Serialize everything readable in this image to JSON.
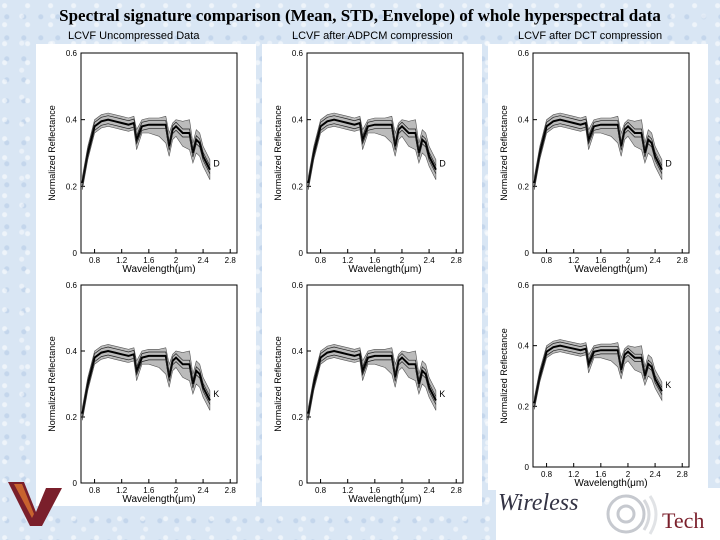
{
  "title": "Spectral signature comparison (Mean, STD, Envelope) of whole hyperspectral data",
  "columns": [
    "LCVF Uncompressed Data",
    "LCVF after ADPCM compression",
    "LCVF after DCT compression"
  ],
  "logo": {
    "wireless": "Wireless",
    "tech": "Tech"
  },
  "chart_data": {
    "type": "line",
    "xlabel": "Wavelength(μm)",
    "ylabel": "Normalized Reflectance",
    "xticks": [
      "0.8",
      "1.2",
      "1.6",
      "2",
      "2.4",
      "2.8"
    ],
    "xlim": [
      0.6,
      2.9
    ],
    "yticks": [
      "0",
      "0.2",
      "0.4",
      "0.6"
    ],
    "ylim": [
      0,
      0.6
    ],
    "panel_labels": [
      "D",
      "K"
    ],
    "mean_spectrum": {
      "x": [
        0.62,
        0.7,
        0.8,
        0.9,
        1.0,
        1.1,
        1.2,
        1.3,
        1.38,
        1.42,
        1.5,
        1.6,
        1.75,
        1.85,
        1.9,
        1.95,
        2.0,
        2.1,
        2.2,
        2.25,
        2.3,
        2.35,
        2.4,
        2.45,
        2.5
      ],
      "y": [
        0.21,
        0.3,
        0.38,
        0.395,
        0.4,
        0.395,
        0.39,
        0.385,
        0.39,
        0.34,
        0.38,
        0.385,
        0.385,
        0.385,
        0.32,
        0.37,
        0.38,
        0.36,
        0.36,
        0.3,
        0.34,
        0.33,
        0.29,
        0.27,
        0.25
      ]
    },
    "envelope_upper": {
      "x": [
        0.62,
        0.7,
        0.8,
        0.9,
        1.0,
        1.1,
        1.2,
        1.3,
        1.38,
        1.42,
        1.5,
        1.6,
        1.75,
        1.85,
        1.9,
        1.95,
        2.0,
        2.1,
        2.2,
        2.25,
        2.3,
        2.35,
        2.4,
        2.45,
        2.5
      ],
      "y": [
        0.23,
        0.32,
        0.4,
        0.415,
        0.42,
        0.415,
        0.41,
        0.405,
        0.41,
        0.37,
        0.4,
        0.405,
        0.405,
        0.41,
        0.36,
        0.39,
        0.4,
        0.395,
        0.4,
        0.33,
        0.37,
        0.36,
        0.32,
        0.3,
        0.28
      ]
    },
    "envelope_lower": {
      "x": [
        0.62,
        0.7,
        0.8,
        0.9,
        1.0,
        1.1,
        1.2,
        1.3,
        1.38,
        1.42,
        1.5,
        1.6,
        1.75,
        1.85,
        1.9,
        1.95,
        2.0,
        2.1,
        2.2,
        2.25,
        2.3,
        2.35,
        2.4,
        2.45,
        2.5
      ],
      "y": [
        0.19,
        0.28,
        0.36,
        0.375,
        0.38,
        0.375,
        0.37,
        0.365,
        0.37,
        0.31,
        0.36,
        0.36,
        0.35,
        0.33,
        0.29,
        0.34,
        0.35,
        0.32,
        0.31,
        0.27,
        0.3,
        0.29,
        0.26,
        0.24,
        0.22
      ]
    }
  }
}
